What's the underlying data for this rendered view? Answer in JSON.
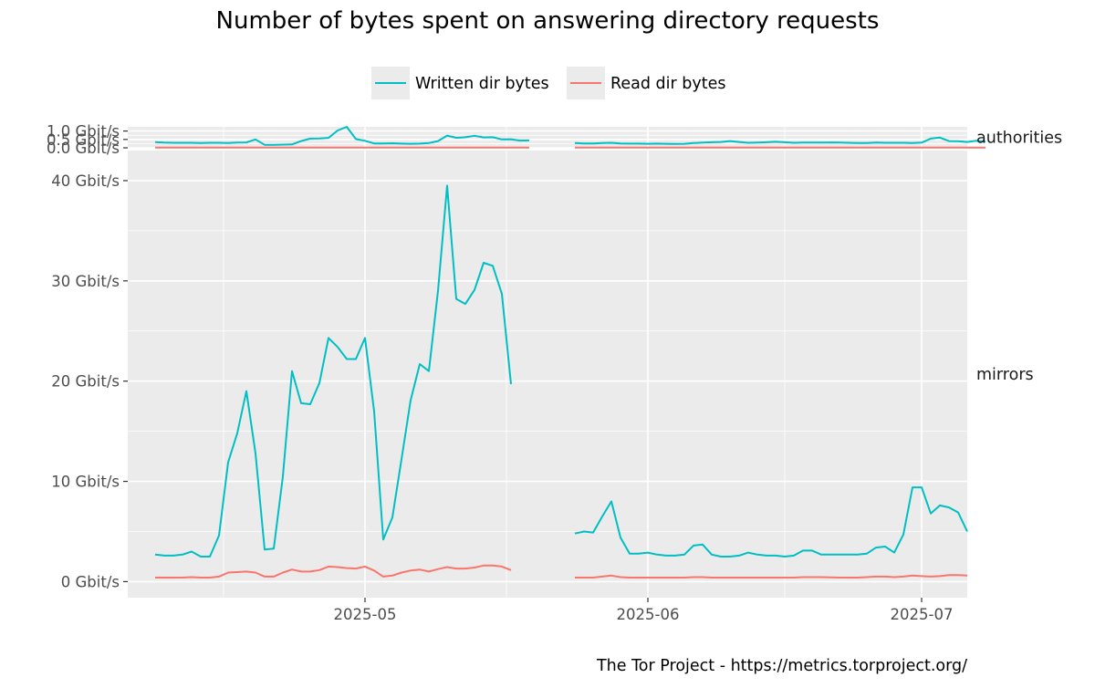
{
  "title": "Number of bytes spent on answering directory requests",
  "caption": "The Tor Project - https://metrics.torproject.org/",
  "legend": {
    "position": "top",
    "items": [
      {
        "label": "Written dir bytes",
        "color": "#00BFC4"
      },
      {
        "label": "Read dir bytes",
        "color": "#F8766D"
      }
    ]
  },
  "colors": {
    "panel_bg": "#EBEBEB",
    "grid": "#FFFFFF",
    "tick_text": "#4D4D4D",
    "title_text": "#000000"
  },
  "chart_data": {
    "type": "line",
    "x_axis": {
      "type": "date",
      "ticks": [
        "2025-05",
        "2025-06",
        "2025-07"
      ],
      "range": [
        "2025-04-05",
        "2025-07-06"
      ]
    },
    "series_meta": [
      {
        "name": "Written dir bytes",
        "color": "#00BFC4"
      },
      {
        "name": "Read dir bytes",
        "color": "#F8766D"
      }
    ],
    "panels": [
      {
        "facet_label": "authorities",
        "y_unit": "Gbit/s",
        "ylim": [
          0,
          1.25
        ],
        "y_ticks": [
          0,
          0.5,
          1.0
        ],
        "y_tick_labels": [
          "0.0 Gbit/s",
          "0.5 Gbit/s",
          "1.0 Gbit/s"
        ],
        "segments": [
          {
            "start": "2025-04-08",
            "written": [
              0.34,
              0.31,
              0.3,
              0.3,
              0.3,
              0.29,
              0.3,
              0.3,
              0.29,
              0.31,
              0.32,
              0.5,
              0.18,
              0.18,
              0.19,
              0.2,
              0.4,
              0.55,
              0.56,
              0.59,
              1.03,
              1.25,
              0.52,
              0.42,
              0.26,
              0.26,
              0.27,
              0.25,
              0.24,
              0.25,
              0.28,
              0.4,
              0.73,
              0.6,
              0.63,
              0.72,
              0.62,
              0.63,
              0.5,
              0.51,
              0.43,
              0.44
            ],
            "read": [
              0.01,
              0.01,
              0.01,
              0.01,
              0.01,
              0.01,
              0.01,
              0.01,
              0.01,
              0.01,
              0.01,
              0.01,
              0.01,
              0.01,
              0.01,
              0.01,
              0.01,
              0.01,
              0.01,
              0.01,
              0.01,
              0.01,
              0.01,
              0.01,
              0.01,
              0.01,
              0.01,
              0.01,
              0.01,
              0.01,
              0.01,
              0.01,
              0.01,
              0.01,
              0.01,
              0.01,
              0.01,
              0.01,
              0.01,
              0.01,
              0.01,
              0.01
            ]
          },
          {
            "start": "2025-05-24",
            "written": [
              0.28,
              0.26,
              0.26,
              0.28,
              0.3,
              0.26,
              0.25,
              0.25,
              0.24,
              0.25,
              0.24,
              0.23,
              0.24,
              0.28,
              0.31,
              0.33,
              0.35,
              0.4,
              0.35,
              0.3,
              0.31,
              0.33,
              0.36,
              0.33,
              0.3,
              0.31,
              0.31,
              0.31,
              0.32,
              0.31,
              0.3,
              0.29,
              0.29,
              0.31,
              0.3,
              0.3,
              0.3,
              0.29,
              0.31,
              0.55,
              0.61,
              0.4,
              0.39,
              0.35,
              0.42,
              0.37
            ],
            "read": [
              0.01,
              0.01,
              0.01,
              0.01,
              0.01,
              0.01,
              0.01,
              0.01,
              0.01,
              0.01,
              0.01,
              0.01,
              0.01,
              0.01,
              0.01,
              0.01,
              0.01,
              0.01,
              0.01,
              0.01,
              0.01,
              0.01,
              0.01,
              0.01,
              0.01,
              0.01,
              0.01,
              0.01,
              0.01,
              0.01,
              0.01,
              0.01,
              0.01,
              0.01,
              0.01,
              0.01,
              0.01,
              0.01,
              0.01,
              0.01,
              0.01,
              0.01,
              0.01,
              0.01,
              0.01,
              0.01
            ]
          }
        ]
      },
      {
        "facet_label": "mirrors",
        "y_unit": "Gbit/s",
        "ylim": [
          -1.6,
          43
        ],
        "y_ticks": [
          0,
          10,
          20,
          30,
          40
        ],
        "y_tick_labels": [
          "0 Gbit/s",
          "10 Gbit/s",
          "20 Gbit/s",
          "30 Gbit/s",
          "40 Gbit/s"
        ],
        "segments": [
          {
            "start": "2025-04-08",
            "written": [
              2.7,
              2.6,
              2.6,
              2.7,
              3.0,
              2.5,
              2.5,
              4.6,
              11.9,
              14.8,
              19.0,
              12.8,
              3.2,
              3.3,
              10.5,
              21.0,
              17.8,
              17.7,
              19.8,
              24.3,
              23.4,
              22.2,
              22.2,
              24.3,
              17.0,
              4.2,
              6.4,
              12.2,
              18.1,
              21.7,
              21.0,
              29.0,
              39.5,
              28.2,
              27.7,
              29.1,
              31.8,
              31.5,
              28.7,
              19.7
            ],
            "read": [
              0.4,
              0.4,
              0.4,
              0.4,
              0.45,
              0.4,
              0.4,
              0.5,
              0.9,
              0.95,
              1.0,
              0.9,
              0.5,
              0.5,
              0.9,
              1.2,
              1.0,
              1.0,
              1.15,
              1.5,
              1.45,
              1.35,
              1.3,
              1.5,
              1.1,
              0.5,
              0.6,
              0.9,
              1.1,
              1.2,
              1.0,
              1.25,
              1.45,
              1.3,
              1.3,
              1.4,
              1.6,
              1.6,
              1.5,
              1.15
            ]
          },
          {
            "start": "2025-05-24",
            "written": [
              4.8,
              5.0,
              4.9,
              6.5,
              8.0,
              4.4,
              2.8,
              2.8,
              2.9,
              2.7,
              2.6,
              2.6,
              2.7,
              3.6,
              3.7,
              2.7,
              2.5,
              2.5,
              2.6,
              2.9,
              2.7,
              2.6,
              2.6,
              2.5,
              2.6,
              3.1,
              3.1,
              2.7,
              2.7,
              2.7,
              2.7,
              2.7,
              2.8,
              3.4,
              3.5,
              2.9,
              4.7,
              9.4,
              9.4,
              6.8,
              7.6,
              7.4,
              6.9,
              5.0
            ],
            "read": [
              0.4,
              0.4,
              0.4,
              0.5,
              0.6,
              0.45,
              0.4,
              0.4,
              0.4,
              0.4,
              0.4,
              0.4,
              0.4,
              0.45,
              0.45,
              0.4,
              0.4,
              0.4,
              0.4,
              0.4,
              0.4,
              0.4,
              0.4,
              0.4,
              0.4,
              0.45,
              0.45,
              0.45,
              0.42,
              0.4,
              0.4,
              0.4,
              0.45,
              0.5,
              0.5,
              0.45,
              0.5,
              0.6,
              0.55,
              0.5,
              0.55,
              0.65,
              0.65,
              0.6
            ]
          }
        ]
      }
    ]
  }
}
